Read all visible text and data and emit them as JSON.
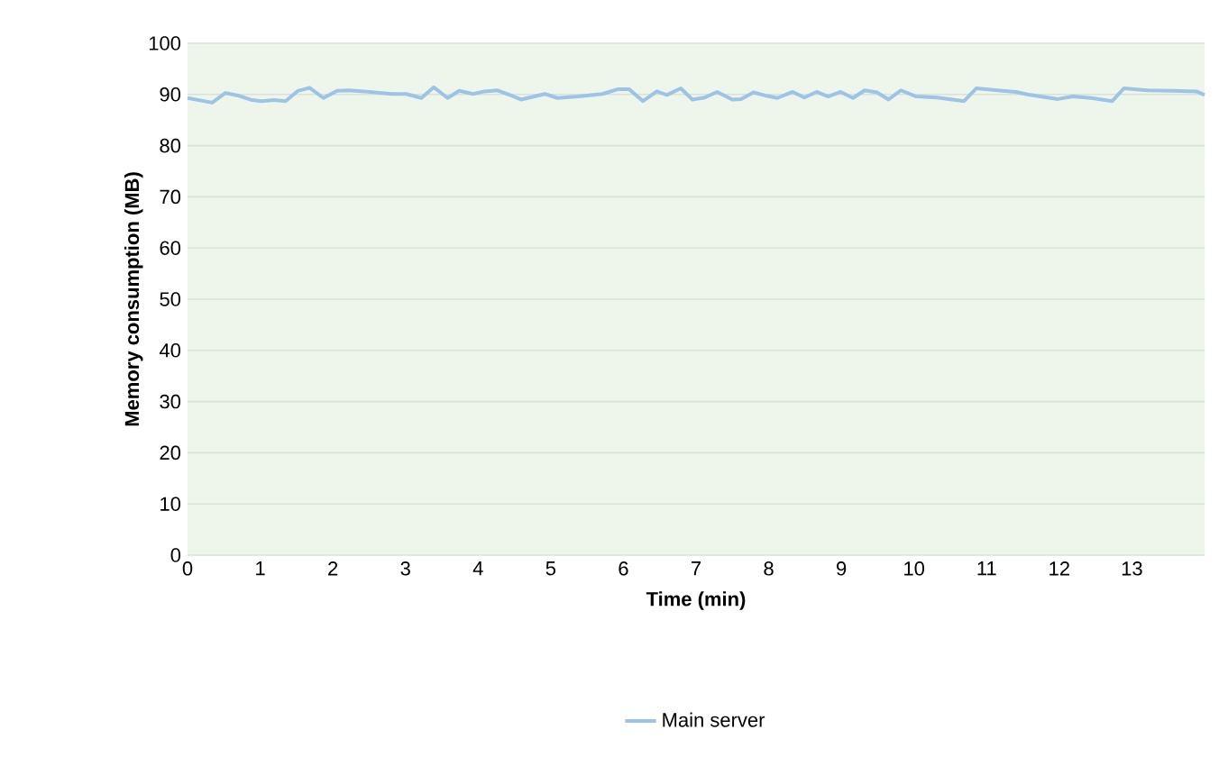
{
  "chart_data": {
    "type": "line",
    "xlabel": "Time (min)",
    "ylabel": "Memory consumption (MB)",
    "xlim": [
      0,
      14
    ],
    "ylim": [
      0,
      100
    ],
    "xticks": [
      0,
      1,
      2,
      3,
      4,
      5,
      6,
      7,
      8,
      9,
      10,
      11,
      12,
      13
    ],
    "yticks": [
      0,
      10,
      20,
      30,
      40,
      50,
      60,
      70,
      80,
      90,
      100
    ],
    "grid": "y",
    "legend": "bottom",
    "marker": "none",
    "line_style": "solid",
    "series": [
      {
        "name": "Main server",
        "color": "#9dc3e6",
        "x": [
          0,
          0.34,
          0.52,
          0.69,
          0.89,
          1.02,
          1.19,
          1.35,
          1.52,
          1.68,
          1.87,
          2.06,
          2.22,
          2.43,
          2.64,
          2.81,
          3.01,
          3.22,
          3.39,
          3.58,
          3.74,
          3.93,
          4.09,
          4.26,
          4.47,
          4.59,
          4.92,
          5.09,
          5.38,
          5.71,
          5.92,
          6.08,
          6.27,
          6.46,
          6.6,
          6.79,
          6.95,
          7.12,
          7.29,
          7.5,
          7.62,
          7.79,
          7.95,
          8.12,
          8.33,
          8.49,
          8.66,
          8.82,
          8.99,
          9.16,
          9.32,
          9.49,
          9.65,
          9.82,
          10.03,
          10.32,
          10.69,
          10.86,
          11.15,
          11.4,
          11.56,
          11.98,
          12.19,
          12.44,
          12.73,
          12.89,
          13.22,
          13.56,
          13.89,
          14
        ],
        "values": [
          89.3,
          88.4,
          90.3,
          89.8,
          88.9,
          88.7,
          88.9,
          88.7,
          90.7,
          91.3,
          89.3,
          90.7,
          90.8,
          90.6,
          90.3,
          90.1,
          90.1,
          89.3,
          91.4,
          89.3,
          90.7,
          90.1,
          90.6,
          90.8,
          89.7,
          89.0,
          90.1,
          89.3,
          89.6,
          90.1,
          91.0,
          91.0,
          88.7,
          90.6,
          89.9,
          91.2,
          89.0,
          89.4,
          90.5,
          89.0,
          89.1,
          90.4,
          89.8,
          89.3,
          90.5,
          89.4,
          90.5,
          89.6,
          90.5,
          89.3,
          90.8,
          90.4,
          89.0,
          90.8,
          89.6,
          89.4,
          88.7,
          91.2,
          90.8,
          90.5,
          90.0,
          89.1,
          89.6,
          89.3,
          88.7,
          91.2,
          90.8,
          90.7,
          90.6,
          89.9
        ]
      }
    ]
  }
}
